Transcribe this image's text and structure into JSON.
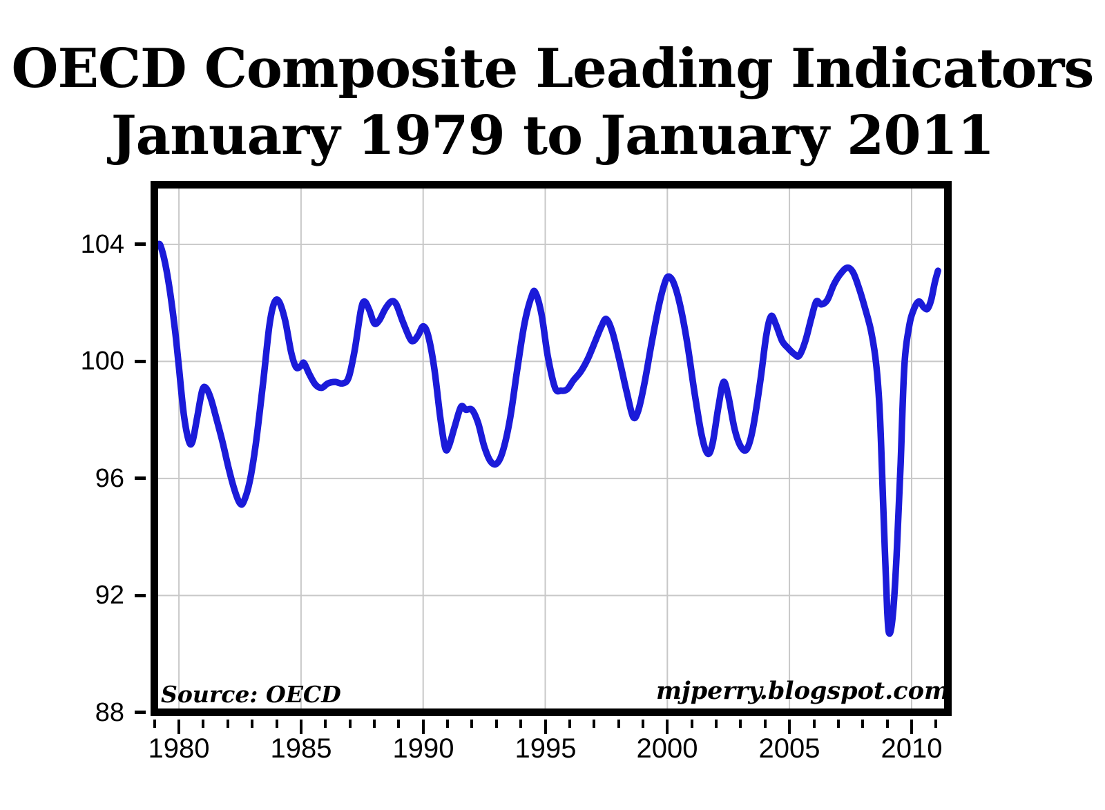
{
  "title": {
    "line1": "OECD Composite Leading Indicators",
    "line2": "January 1979 to January 2011"
  },
  "annotations": {
    "source": "Source: OECD",
    "credit": "mjperry.blogspot.com"
  },
  "chart_data": {
    "type": "line",
    "title": "OECD Composite Leading Indicators January 1979 to January 2011",
    "xlabel": "",
    "ylabel": "",
    "xlim": [
      1979.15,
      2011.33
    ],
    "ylim": [
      88.14,
      105.91
    ],
    "grid": true,
    "legend_position": "none",
    "colors": {
      "line": "#1b1bd9",
      "grid": "#c8c8c8",
      "axis": "#000000",
      "background": "#ffffff"
    },
    "y_ticks": [
      {
        "value": 88,
        "label": "88"
      },
      {
        "value": 92,
        "label": "92"
      },
      {
        "value": 96,
        "label": "96"
      },
      {
        "value": 100,
        "label": "100"
      },
      {
        "value": 104,
        "label": "104"
      }
    ],
    "x_major_ticks": [
      {
        "value": 1980,
        "label": "1980"
      },
      {
        "value": 1985,
        "label": "1985"
      },
      {
        "value": 1990,
        "label": "1990"
      },
      {
        "value": 1995,
        "label": "1995"
      },
      {
        "value": 2000,
        "label": "2000"
      },
      {
        "value": 2005,
        "label": "2005"
      },
      {
        "value": 2010,
        "label": "2010"
      }
    ],
    "x_minor_ticks": [
      1979,
      1980,
      1981,
      1982,
      1983,
      1984,
      1985,
      1986,
      1987,
      1988,
      1989,
      1990,
      1991,
      1992,
      1993,
      1994,
      1995,
      1996,
      1997,
      1998,
      1999,
      2000,
      2001,
      2002,
      2003,
      2004,
      2005,
      2006,
      2007,
      2008,
      2009,
      2010,
      2011
    ],
    "series": [
      {
        "name": "OECD Composite Leading Indicator",
        "points": [
          [
            1979.15,
            104.0
          ],
          [
            1979.25,
            103.95
          ],
          [
            1979.45,
            103.3
          ],
          [
            1979.65,
            102.3
          ],
          [
            1979.85,
            101.0
          ],
          [
            1980.0,
            99.8
          ],
          [
            1980.2,
            98.2
          ],
          [
            1980.4,
            97.3
          ],
          [
            1980.55,
            97.25
          ],
          [
            1980.75,
            98.1
          ],
          [
            1980.95,
            99.0
          ],
          [
            1981.1,
            99.1
          ],
          [
            1981.3,
            98.75
          ],
          [
            1981.55,
            98.0
          ],
          [
            1981.8,
            97.2
          ],
          [
            1982.05,
            96.3
          ],
          [
            1982.3,
            95.55
          ],
          [
            1982.5,
            95.15
          ],
          [
            1982.65,
            95.2
          ],
          [
            1982.9,
            95.9
          ],
          [
            1983.15,
            97.2
          ],
          [
            1983.45,
            99.3
          ],
          [
            1983.7,
            101.2
          ],
          [
            1983.9,
            102.0
          ],
          [
            1984.1,
            102.05
          ],
          [
            1984.35,
            101.4
          ],
          [
            1984.6,
            100.3
          ],
          [
            1984.8,
            99.8
          ],
          [
            1985.0,
            99.85
          ],
          [
            1985.12,
            99.95
          ],
          [
            1985.35,
            99.55
          ],
          [
            1985.6,
            99.2
          ],
          [
            1985.85,
            99.1
          ],
          [
            1986.1,
            99.25
          ],
          [
            1986.4,
            99.3
          ],
          [
            1986.7,
            99.25
          ],
          [
            1986.95,
            99.45
          ],
          [
            1987.2,
            100.4
          ],
          [
            1987.45,
            101.75
          ],
          [
            1987.6,
            102.05
          ],
          [
            1987.8,
            101.75
          ],
          [
            1988.0,
            101.3
          ],
          [
            1988.2,
            101.4
          ],
          [
            1988.45,
            101.8
          ],
          [
            1988.7,
            102.05
          ],
          [
            1988.9,
            101.95
          ],
          [
            1989.15,
            101.4
          ],
          [
            1989.45,
            100.8
          ],
          [
            1989.6,
            100.7
          ],
          [
            1989.8,
            100.9
          ],
          [
            1990.0,
            101.2
          ],
          [
            1990.2,
            100.9
          ],
          [
            1990.45,
            99.8
          ],
          [
            1990.7,
            98.1
          ],
          [
            1990.9,
            97.05
          ],
          [
            1991.05,
            97.1
          ],
          [
            1991.3,
            97.8
          ],
          [
            1991.55,
            98.45
          ],
          [
            1991.75,
            98.35
          ],
          [
            1992.0,
            98.35
          ],
          [
            1992.25,
            97.9
          ],
          [
            1992.5,
            97.1
          ],
          [
            1992.75,
            96.6
          ],
          [
            1993.0,
            96.5
          ],
          [
            1993.25,
            96.9
          ],
          [
            1993.55,
            98.0
          ],
          [
            1993.85,
            99.7
          ],
          [
            1994.15,
            101.3
          ],
          [
            1994.45,
            102.25
          ],
          [
            1994.6,
            102.35
          ],
          [
            1994.85,
            101.6
          ],
          [
            1995.1,
            100.2
          ],
          [
            1995.4,
            99.1
          ],
          [
            1995.65,
            99.0
          ],
          [
            1995.9,
            99.05
          ],
          [
            1996.15,
            99.35
          ],
          [
            1996.45,
            99.65
          ],
          [
            1996.75,
            100.1
          ],
          [
            1997.05,
            100.7
          ],
          [
            1997.3,
            101.2
          ],
          [
            1997.5,
            101.45
          ],
          [
            1997.75,
            101.0
          ],
          [
            1998.05,
            100.0
          ],
          [
            1998.35,
            98.9
          ],
          [
            1998.6,
            98.1
          ],
          [
            1998.8,
            98.3
          ],
          [
            1999.05,
            99.2
          ],
          [
            1999.35,
            100.6
          ],
          [
            1999.65,
            101.9
          ],
          [
            1999.9,
            102.7
          ],
          [
            2000.05,
            102.9
          ],
          [
            2000.25,
            102.7
          ],
          [
            2000.5,
            102.0
          ],
          [
            2000.8,
            100.7
          ],
          [
            2001.1,
            99.0
          ],
          [
            2001.4,
            97.5
          ],
          [
            2001.65,
            96.85
          ],
          [
            2001.85,
            97.2
          ],
          [
            2002.1,
            98.5
          ],
          [
            2002.3,
            99.3
          ],
          [
            2002.5,
            98.8
          ],
          [
            2002.75,
            97.7
          ],
          [
            2003.0,
            97.1
          ],
          [
            2003.25,
            97.0
          ],
          [
            2003.5,
            97.7
          ],
          [
            2003.8,
            99.3
          ],
          [
            2004.05,
            100.9
          ],
          [
            2004.25,
            101.55
          ],
          [
            2004.45,
            101.25
          ],
          [
            2004.7,
            100.7
          ],
          [
            2004.95,
            100.45
          ],
          [
            2005.2,
            100.25
          ],
          [
            2005.4,
            100.2
          ],
          [
            2005.65,
            100.7
          ],
          [
            2005.9,
            101.5
          ],
          [
            2006.1,
            102.05
          ],
          [
            2006.3,
            101.95
          ],
          [
            2006.55,
            102.1
          ],
          [
            2006.8,
            102.6
          ],
          [
            2007.05,
            102.95
          ],
          [
            2007.35,
            103.2
          ],
          [
            2007.6,
            103.05
          ],
          [
            2007.85,
            102.5
          ],
          [
            2008.1,
            101.8
          ],
          [
            2008.35,
            101.0
          ],
          [
            2008.55,
            99.9
          ],
          [
            2008.7,
            98.2
          ],
          [
            2008.85,
            94.8
          ],
          [
            2009.0,
            91.5
          ],
          [
            2009.1,
            90.7
          ],
          [
            2009.25,
            91.5
          ],
          [
            2009.4,
            93.6
          ],
          [
            2009.55,
            96.5
          ],
          [
            2009.7,
            99.8
          ],
          [
            2009.9,
            101.2
          ],
          [
            2010.1,
            101.8
          ],
          [
            2010.3,
            102.05
          ],
          [
            2010.5,
            101.85
          ],
          [
            2010.65,
            101.8
          ],
          [
            2010.8,
            102.1
          ],
          [
            2010.95,
            102.7
          ],
          [
            2011.08,
            103.1
          ]
        ]
      }
    ]
  }
}
